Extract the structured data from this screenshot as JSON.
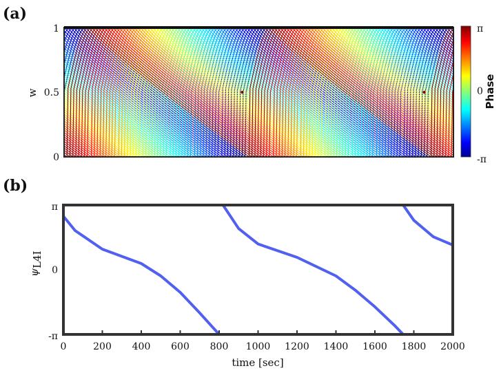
{
  "chart_data": [
    {
      "panel_label": "(a)",
      "type": "line",
      "xlim": [
        0,
        2000
      ],
      "ylim": [
        0,
        1
      ],
      "ylabel": "w",
      "y_ticks": [
        "0",
        "0.5",
        "1"
      ],
      "colorbar": {
        "label": "Phase",
        "range": [
          -3.14159,
          3.14159
        ],
        "ticks": [
          "-π",
          "0",
          "π"
        ],
        "colormap": "jet",
        "colors": [
          "#00008f",
          "#0000ff",
          "#00ffff",
          "#ffff00",
          "#ff0000",
          "#800000"
        ]
      },
      "description_series": {
        "count": 60,
        "sweep_period_sec": 935,
        "rise_peaks": [
          {
            "x": 915,
            "y": 0.5
          },
          {
            "x": 1850,
            "y": 0.5
          }
        ]
      }
    },
    {
      "panel_label": "(b)",
      "type": "line",
      "xlim": [
        0,
        2000
      ],
      "ylim": [
        -3.14159,
        3.14159
      ],
      "xlabel": "time [sec]",
      "x_ticks": [
        "0",
        "200",
        "400",
        "600",
        "800",
        "1000",
        "1200",
        "1400",
        "1600",
        "1800",
        "2000"
      ],
      "y_ticks": [
        "-π",
        "0",
        "π"
      ],
      "ylabel_main": "ψ",
      "ylabel_sub": "L4I",
      "series_color": "#3344ee",
      "series": [
        {
          "x": [
            0,
            60,
            200,
            400,
            500,
            600,
            700,
            800
          ],
          "y": [
            2.6,
            1.9,
            1.0,
            0.3,
            -0.3,
            -1.1,
            -2.1,
            -3.14
          ]
        },
        {
          "x": [
            820,
            900,
            1000,
            1200,
            1400,
            1500,
            1600,
            1700,
            1745
          ],
          "y": [
            3.14,
            2.0,
            1.25,
            0.6,
            -0.3,
            -1.0,
            -1.8,
            -2.7,
            -3.14
          ]
        },
        {
          "x": [
            1745,
            1800,
            1900,
            2000
          ],
          "y": [
            3.14,
            2.4,
            1.6,
            1.2
          ]
        }
      ]
    }
  ]
}
